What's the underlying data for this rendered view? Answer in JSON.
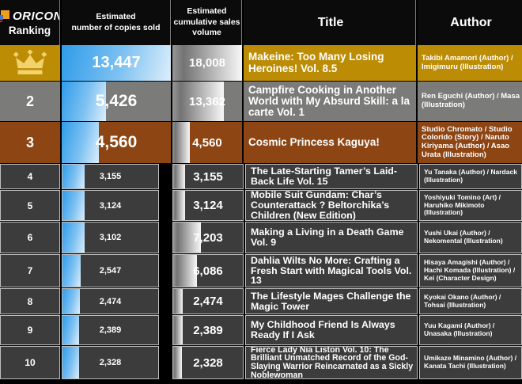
{
  "colors": {
    "background": "#000000",
    "header_bg": "#0b0b0b",
    "gold_row": "#bc8c05",
    "silver_row": "#7b7b79",
    "bronze_row": "#8d4514",
    "dark_row": "#3c3c3c",
    "crown": "#f2d36b",
    "blue_bar_start": "#2f9ce9",
    "blue_bar_end": "#ddeefb",
    "gray_bar_light": "#f7f7f7",
    "logo_orange": "#f0a01e",
    "logo_blue": "#4576c8",
    "logo_red": "#cc2222",
    "text": "#ffffff"
  },
  "header": {
    "brand": "ORICON",
    "ranking_label": "Ranking",
    "copies_label": "Estimated\nnumber of copies sold",
    "cumulative_label": "Estimated\ncumulative sales\nvolume",
    "title_label": "Title",
    "author_label": "Author"
  },
  "rows": [
    {
      "rank": "1",
      "crown": true,
      "copies": "13,447",
      "cumulative": "18,008",
      "title": "Makeine: Too Many Losing Heroines! Vol. 8.5",
      "author": "Takibi Amamori (Author) / Imigimuru (Illustration)"
    },
    {
      "rank": "2",
      "crown": false,
      "copies": "5,426",
      "cumulative": "13,362",
      "title": "Campfire Cooking in Another World with My Absurd Skill: a la carte Vol. 1",
      "author": "Ren Eguchi (Author) / Masa (Illustration)"
    },
    {
      "rank": "3",
      "crown": false,
      "copies": "4,560",
      "cumulative": "4,560",
      "title": "Cosmic Princess Kaguya!",
      "author": "Studio Chromato / Studio Colorido (Story) / Naruto Kiriyama (Author) / Asao Urata (Illustration)"
    },
    {
      "rank": "4",
      "crown": false,
      "copies": "3,155",
      "cumulative": "3,155",
      "title": "The Late-Starting Tamer’s Laid-Back Life Vol. 15",
      "author": "Yu Tanaka (Author) / Nardack (Illustration)"
    },
    {
      "rank": "5",
      "crown": false,
      "copies": "3,124",
      "cumulative": "3,124",
      "title": "Mobile Suit Gundam: Char’s Counterattack ? Beltorchika’s Children (New Edition)",
      "author": "Yoshiyuki Tomino (Art) / Haruhiko Mikimoto (Illustration)"
    },
    {
      "rank": "6",
      "crown": false,
      "copies": "3,102",
      "cumulative": "7,203",
      "title": "Making a Living in a Death Game Vol. 9",
      "author": "Yushi Ukai (Author) / Nekomental (Illustration)"
    },
    {
      "rank": "7",
      "crown": false,
      "copies": "2,547",
      "cumulative": "6,086",
      "title": "Dahlia Wilts No More: Crafting a Fresh Start with Magical Tools Vol. 13",
      "author": "Hisaya Amagishi (Author) / Hachi Komada (Illustration) / Kei (Character Design)"
    },
    {
      "rank": "8",
      "crown": false,
      "copies": "2,474",
      "cumulative": "2,474",
      "title": "The Lifestyle Mages Challenge the Magic Tower",
      "author": "Kyokai Okano (Author) / Tohsai (Illustration)"
    },
    {
      "rank": "9",
      "crown": false,
      "copies": "2,389",
      "cumulative": "2,389",
      "title": "My Childhood Friend Is Always Ready If I Ask",
      "author": "Yuu Kagami (Author) / Unasaka (Illustration)"
    },
    {
      "rank": "10",
      "crown": false,
      "copies": "2,328",
      "cumulative": "2,328",
      "title": "Fierce Lady Nia Liston Vol. 10: The Brilliant Unmatched Record of the God-Slaying Warrior Reincarnated as a Sickly Noblewoman",
      "author": "Umikaze Minamino (Author) / Kanata Tachi (Illustration)"
    }
  ],
  "chart_data": {
    "type": "bar",
    "orientation": "horizontal",
    "categories": [
      "1",
      "2",
      "3",
      "4",
      "5",
      "6",
      "7",
      "8",
      "9",
      "10"
    ],
    "series": [
      {
        "name": "Estimated number of copies sold",
        "values": [
          13447,
          5426,
          4560,
          3155,
          3124,
          3102,
          2547,
          2474,
          2389,
          2328
        ]
      },
      {
        "name": "Estimated cumulative sales volume",
        "values": [
          18008,
          13362,
          4560,
          3155,
          3124,
          7203,
          6086,
          2474,
          2389,
          2328
        ]
      }
    ],
    "value_axis_max_copies": 13447,
    "value_axis_max_cumulative": 18008,
    "grid": false,
    "legend": "column headers"
  }
}
